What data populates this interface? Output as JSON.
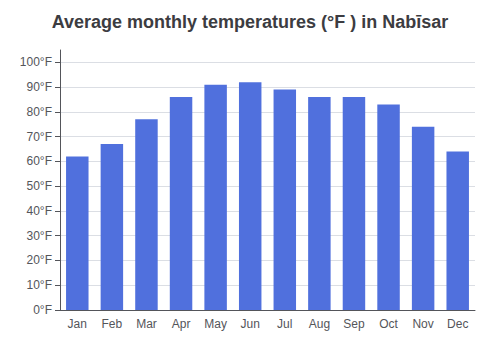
{
  "chart_data": {
    "type": "bar",
    "title": "Average monthly temperatures (°F ) in Nabīsar",
    "categories": [
      "Jan",
      "Feb",
      "Mar",
      "Apr",
      "May",
      "Jun",
      "Jul",
      "Aug",
      "Sep",
      "Oct",
      "Nov",
      "Dec"
    ],
    "values": [
      62,
      67,
      77,
      86,
      91,
      92,
      89,
      86,
      86,
      83,
      74,
      64
    ],
    "ylim": [
      0,
      105
    ],
    "yticks": [
      {
        "value": 0,
        "label": "0°F"
      },
      {
        "value": 10,
        "label": "10°F"
      },
      {
        "value": 20,
        "label": "20°F"
      },
      {
        "value": 30,
        "label": "30°F"
      },
      {
        "value": 40,
        "label": "40°F"
      },
      {
        "value": 50,
        "label": "50°F"
      },
      {
        "value": 60,
        "label": "60°F"
      },
      {
        "value": 70,
        "label": "70°F"
      },
      {
        "value": 80,
        "label": "80°F"
      },
      {
        "value": 90,
        "label": "90°F"
      },
      {
        "value": 100,
        "label": "100°F"
      }
    ],
    "grid": true
  }
}
